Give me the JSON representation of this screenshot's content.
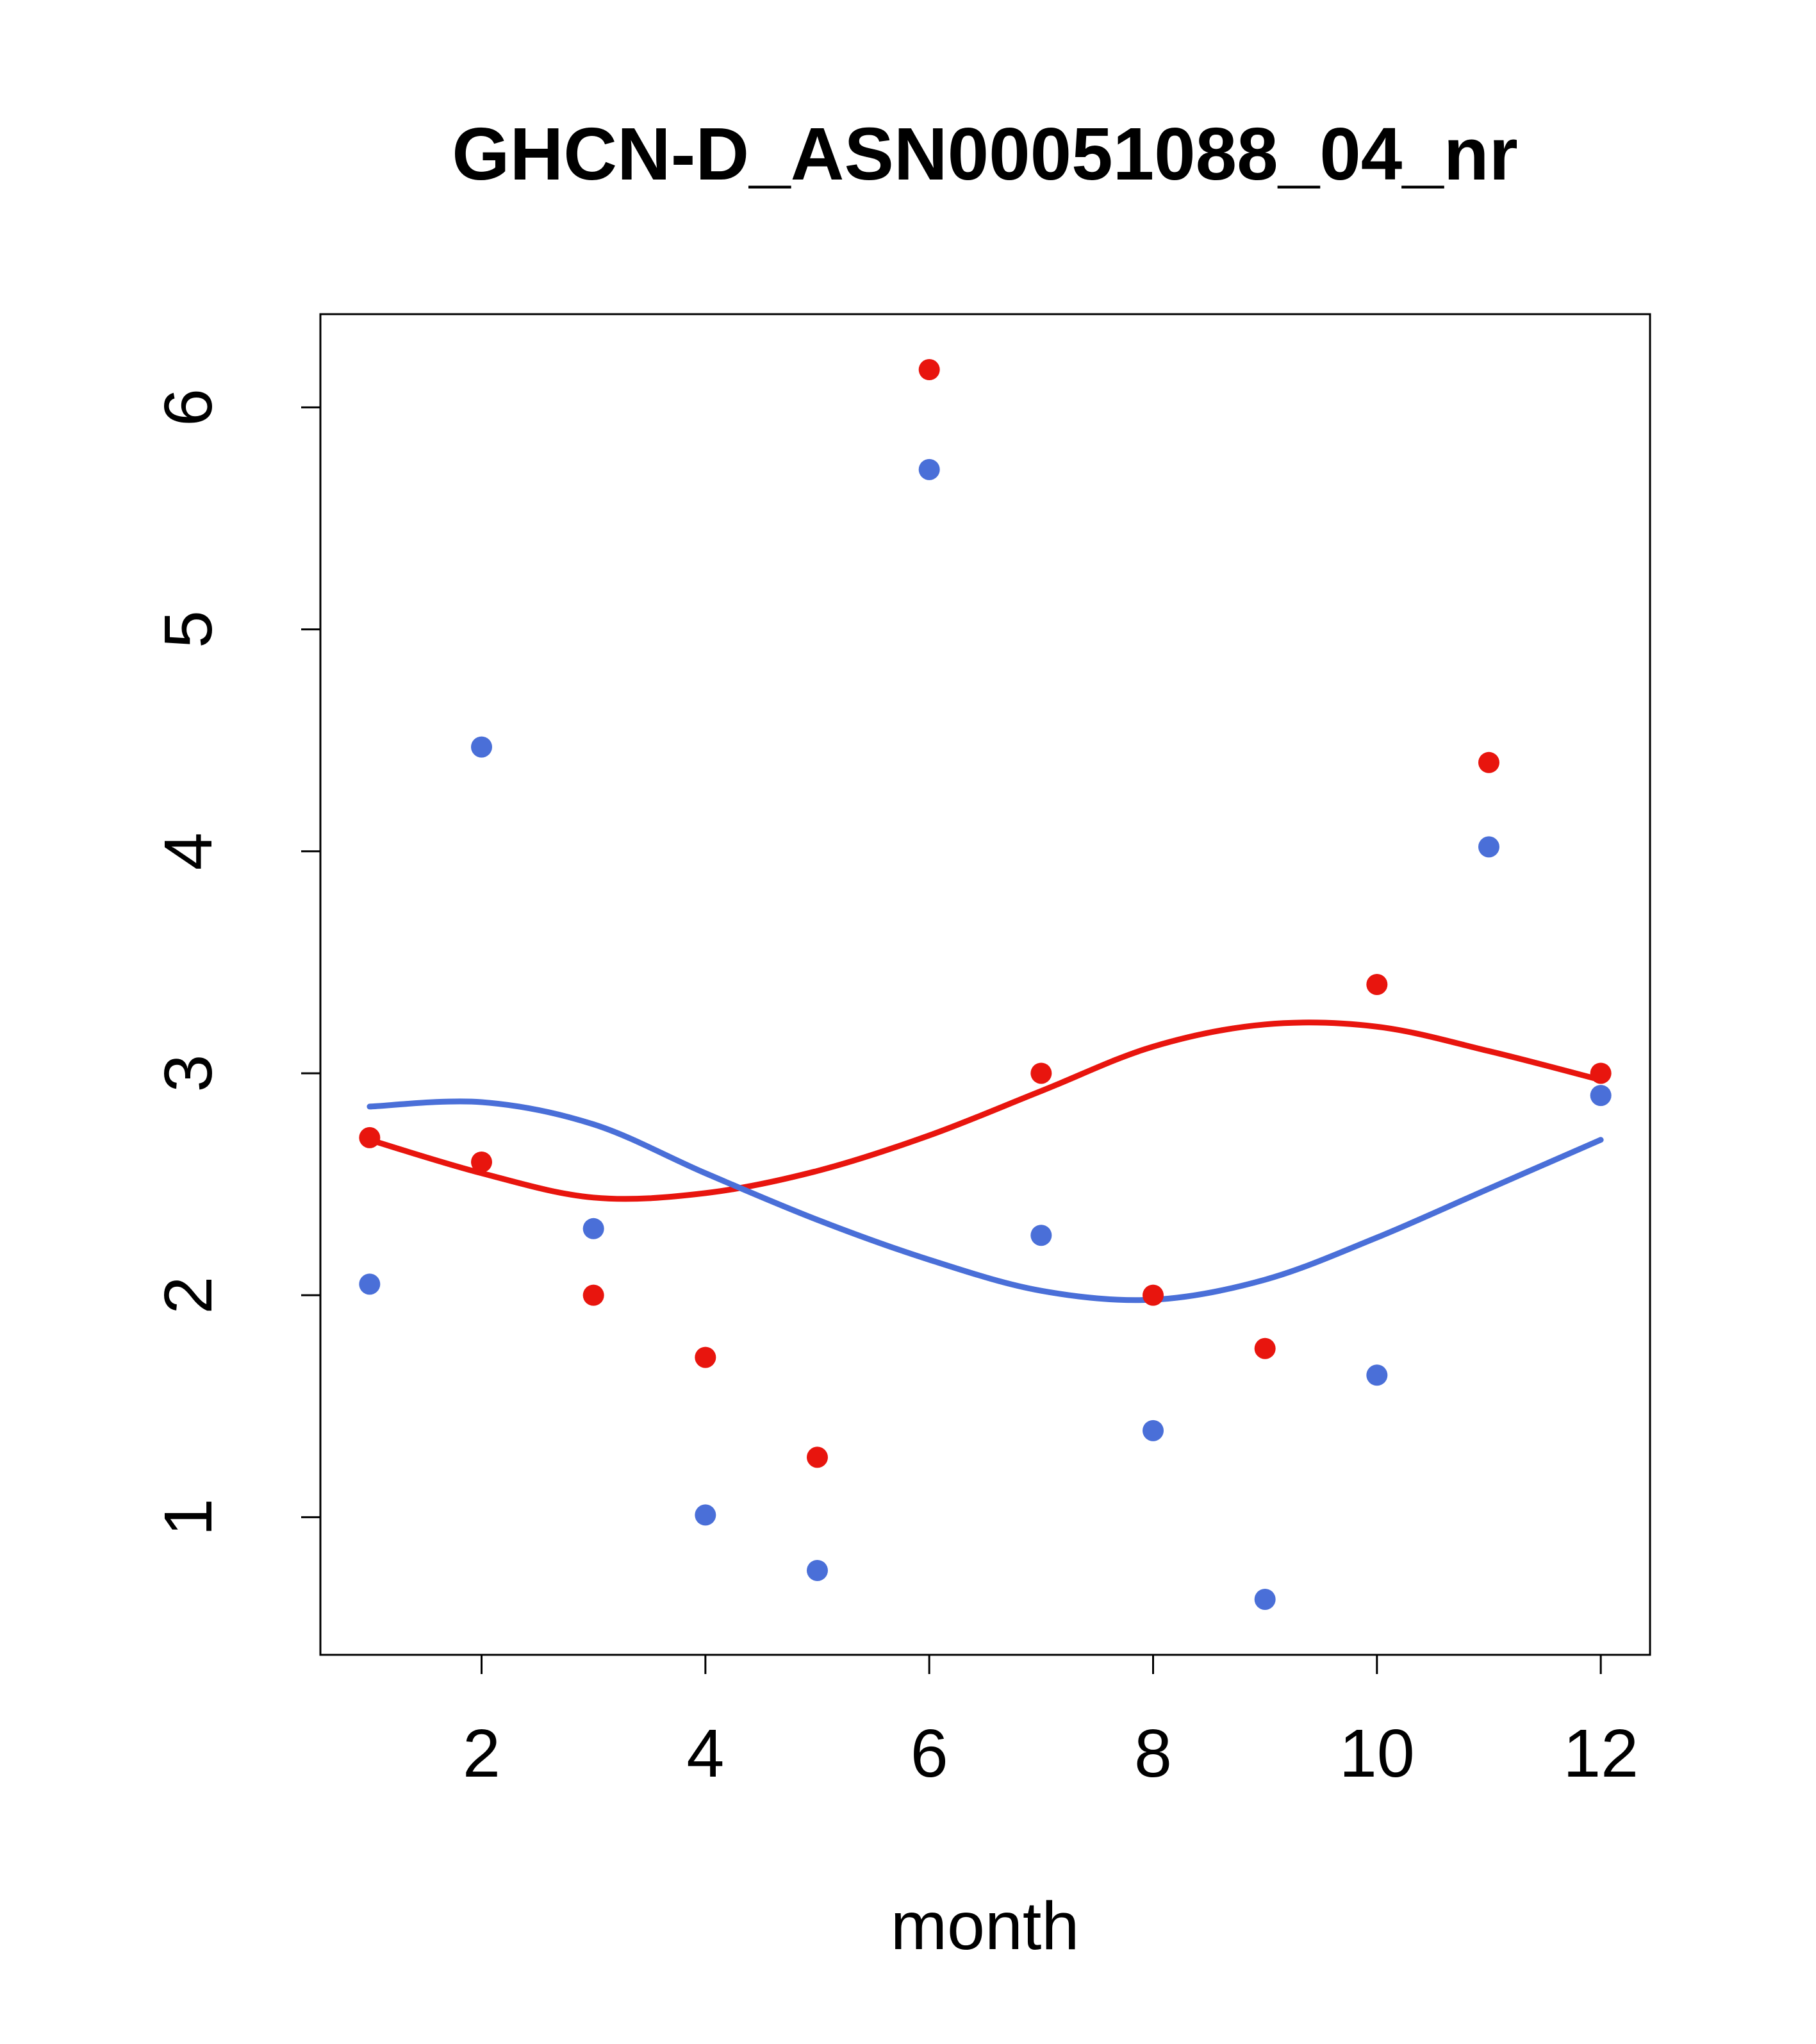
{
  "title": "GHCN-D_ASN00051088_04_nr",
  "chart_data": {
    "type": "scatter",
    "title": "GHCN-D_ASN00051088_04_nr",
    "xlabel": "month",
    "ylabel": "",
    "xlim": [
      0.56,
      12.44
    ],
    "ylim": [
      0.38,
      6.42
    ],
    "x_ticks": [
      2,
      4,
      6,
      8,
      10,
      12
    ],
    "y_ticks": [
      1,
      2,
      3,
      4,
      5,
      6
    ],
    "grid": false,
    "legend": "none",
    "colors": {
      "red": "#e8150e",
      "blue": "#4a6fd8",
      "axis": "#000000"
    },
    "x": [
      1,
      2,
      3,
      4,
      5,
      6,
      7,
      8,
      9,
      10,
      11,
      12
    ],
    "series": [
      {
        "name": "red-smooth-line",
        "kind": "line",
        "color": "#e8150e",
        "values": [
          2.7,
          2.55,
          2.44,
          2.46,
          2.56,
          2.72,
          2.92,
          3.12,
          3.22,
          3.21,
          3.1,
          2.97
        ]
      },
      {
        "name": "blue-smooth-line",
        "kind": "line",
        "color": "#4a6fd8",
        "values": [
          2.85,
          2.87,
          2.77,
          2.55,
          2.34,
          2.16,
          2.02,
          1.98,
          2.07,
          2.26,
          2.48,
          2.7
        ]
      },
      {
        "name": "red-points",
        "kind": "points",
        "color": "#e8150e",
        "values": [
          2.71,
          2.6,
          2.0,
          1.72,
          1.27,
          6.17,
          3.0,
          2.0,
          1.76,
          3.4,
          4.4,
          3.0
        ]
      },
      {
        "name": "blue-points",
        "kind": "points",
        "color": "#4a6fd8",
        "values": [
          2.05,
          4.47,
          2.3,
          1.01,
          0.76,
          5.72,
          2.27,
          1.39,
          0.63,
          1.64,
          4.02,
          2.9
        ]
      }
    ]
  }
}
